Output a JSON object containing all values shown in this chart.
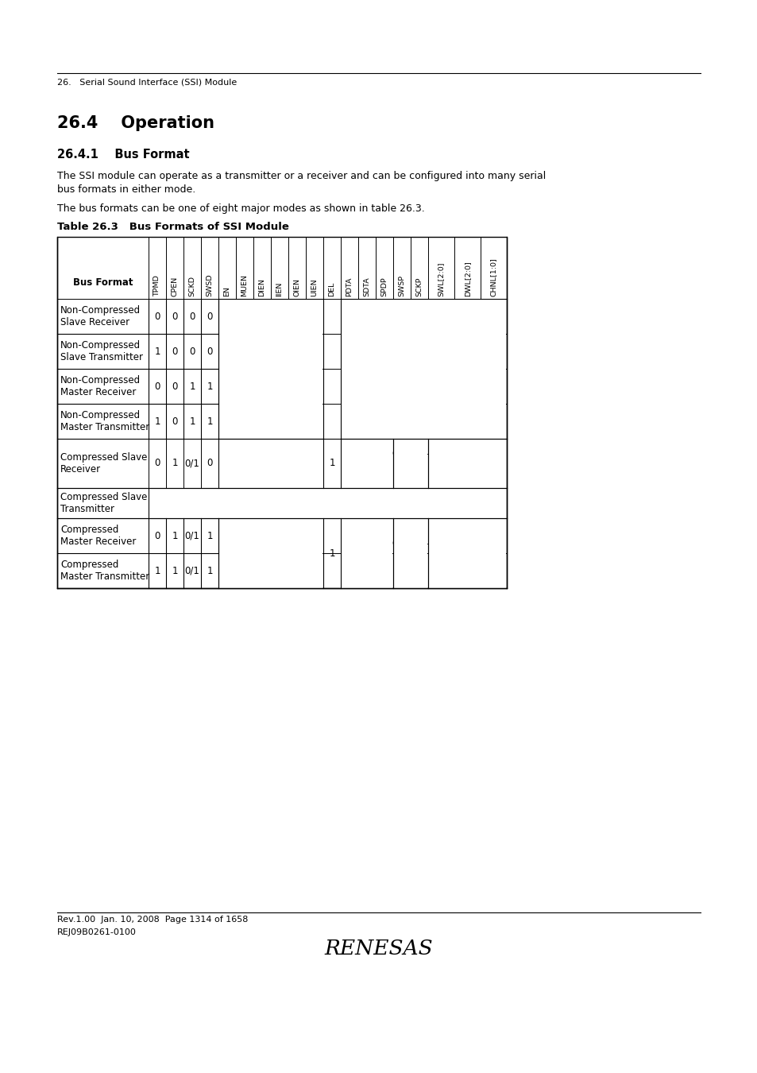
{
  "page_header": "26.   Serial Sound Interface (SSI) Module",
  "section_title": "26.4    Operation",
  "subsection_title": "26.4.1    Bus Format",
  "para1": "The SSI module can operate as a transmitter or a receiver and can be configured into many serial",
  "para1b": "bus formats in either mode.",
  "para2": "The bus formats can be one of eight major modes as shown in table 26.3.",
  "table_title": "Table 26.3   Bus Formats of SSI Module",
  "col_headers": [
    "TPMD",
    "CPEN",
    "SCKD",
    "SWSD",
    "EN",
    "MUEN",
    "DIEN",
    "IIEN",
    "OIEN",
    "UIEN",
    "DEL",
    "PDTA",
    "SDTA",
    "SPDP",
    "SWSP",
    "SCKP",
    "SWL[2:0]",
    "DWL[2:0]",
    "CHNL[1:0]"
  ],
  "footer_line1": "Rev.1.00  Jan. 10, 2008  Page 1314 of 1658",
  "footer_line2": "REJ09B0261-0100",
  "bg_color": "#ffffff"
}
